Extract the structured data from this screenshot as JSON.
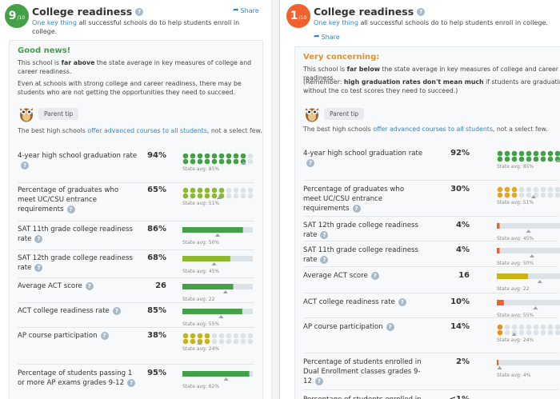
{
  "left": {
    "rating": "9",
    "rating_suffix": "/10",
    "title": "College readiness",
    "share": "Share",
    "subtitle_link": "One key thing",
    "subtitle_rest": " all successful schools do to help students enroll in college.",
    "verdict": "Good news!",
    "desc1_a": "This school is ",
    "desc1_b": "far above",
    "desc1_c": " the state average in key measures of college and career readiness.",
    "desc2": "Even at schools with strong college and career readiness, there may be students who are not getting the opportunities they need to succeed.",
    "tip_label": "Parent tip",
    "tip_text_a": "The best high schools ",
    "tip_text_link": "offer advanced courses to all students",
    "tip_text_b": ", not a select few.",
    "metrics": [
      {
        "label": "4-year high school graduation rate",
        "value": "94%",
        "kind": "dots",
        "val": 94,
        "avg": 85,
        "avg_text": "State avg: 85%",
        "color": "#43a047"
      },
      {
        "label": "Percentage of graduates who meet UC/CSU entrance requirements",
        "value": "65%",
        "kind": "dots",
        "val": 65,
        "avg": 51,
        "avg_text": "State avg: 51%",
        "color": "#8cb92d"
      },
      {
        "label": "SAT 11th grade college readiness rate",
        "value": "86%",
        "kind": "bar",
        "val": 86,
        "avg": 50,
        "avg_text": "State avg: 50%",
        "color": "#43a047"
      },
      {
        "label": "SAT 12th grade college readiness rate",
        "value": "68%",
        "kind": "bar",
        "val": 68,
        "avg": 45,
        "avg_text": "State avg: 45%",
        "color": "#8cb92d"
      },
      {
        "label": "Average ACT score",
        "value": "26",
        "kind": "bar",
        "val": 26,
        "max": 36,
        "avg": 22,
        "avg_text": "State avg: 22",
        "color": "#43a047"
      },
      {
        "label": "ACT college readiness rate",
        "value": "85%",
        "kind": "bar",
        "val": 85,
        "avg": 55,
        "avg_text": "State avg: 55%",
        "color": "#43a047"
      },
      {
        "label": "AP course participation",
        "value": "38%",
        "kind": "dots",
        "val": 38,
        "avg": 24,
        "avg_text": "State avg: 24%",
        "color": "#c8b415"
      },
      {
        "label": "Percentage of students passing 1 or more AP exams grades 9-12",
        "value": "95%",
        "kind": "bar",
        "val": 95,
        "avg": 62,
        "avg_text": "State avg: 62%",
        "color": "#43a047"
      }
    ]
  },
  "right": {
    "rating": "1",
    "rating_suffix": "/10",
    "title": "College readiness",
    "share": "Share",
    "subtitle_link": "One key thing",
    "subtitle_rest": " all successful schools do to help students enroll in college.",
    "verdict": "Very concerning:",
    "desc1_a": "This school is ",
    "desc1_b": "far below",
    "desc1_c": " the state average in key measures of college and career readiness.",
    "desc2_a": "(Remember: ",
    "desc2_b": "high graduation rates don't mean much",
    "desc2_c": " if students are graduating without the co test scores they need to succeed.)",
    "tip_label": "Parent tip",
    "tip_text_a": "The best high schools ",
    "tip_text_link": "offer advanced courses to all students",
    "tip_text_b": ", not a select few.",
    "metrics": [
      {
        "label": "4-year high school graduation rate",
        "value": "92%",
        "kind": "dots",
        "val": 92,
        "avg": 85,
        "avg_text": "State avg: 85%",
        "color": "#43a047"
      },
      {
        "label": "Percentage of graduates who meet UC/CSU entrance requirements",
        "value": "30%",
        "kind": "dots",
        "val": 30,
        "avg": 51,
        "avg_text": "State avg: 51%",
        "color": "#e0a91e"
      },
      {
        "label": "SAT 12th grade college readiness rate",
        "value": "4%",
        "kind": "bar",
        "val": 4,
        "avg": 45,
        "avg_text": "State avg: 45%",
        "color": "#f0612b"
      },
      {
        "label": "SAT 11th grade college readiness rate",
        "value": "4%",
        "kind": "bar",
        "val": 4,
        "avg": 50,
        "avg_text": "State avg: 50%",
        "color": "#f0612b"
      },
      {
        "label": "Average ACT score",
        "value": "16",
        "kind": "bar",
        "val": 16,
        "max": 36,
        "avg": 22,
        "avg_text": "State avg: 22",
        "color": "#c8b415"
      },
      {
        "label": "ACT college readiness rate",
        "value": "10%",
        "kind": "bar",
        "val": 10,
        "avg": 55,
        "avg_text": "State avg: 55%",
        "color": "#f0612b"
      },
      {
        "label": "AP course participation",
        "value": "14%",
        "kind": "dots",
        "val": 14,
        "avg": 24,
        "avg_text": "State avg: 24%",
        "color": "#e8911e"
      },
      {
        "label": "Percentage of students enrolled in Dual Enrollment classes grades 9-12",
        "value": "2%",
        "kind": "bar",
        "val": 2,
        "avg": 4,
        "avg_text": "State avg: 4%",
        "color": "#f0612b"
      },
      {
        "label": "Percentage of students enrolled in IB",
        "value": "<1%",
        "kind": "none"
      }
    ]
  }
}
